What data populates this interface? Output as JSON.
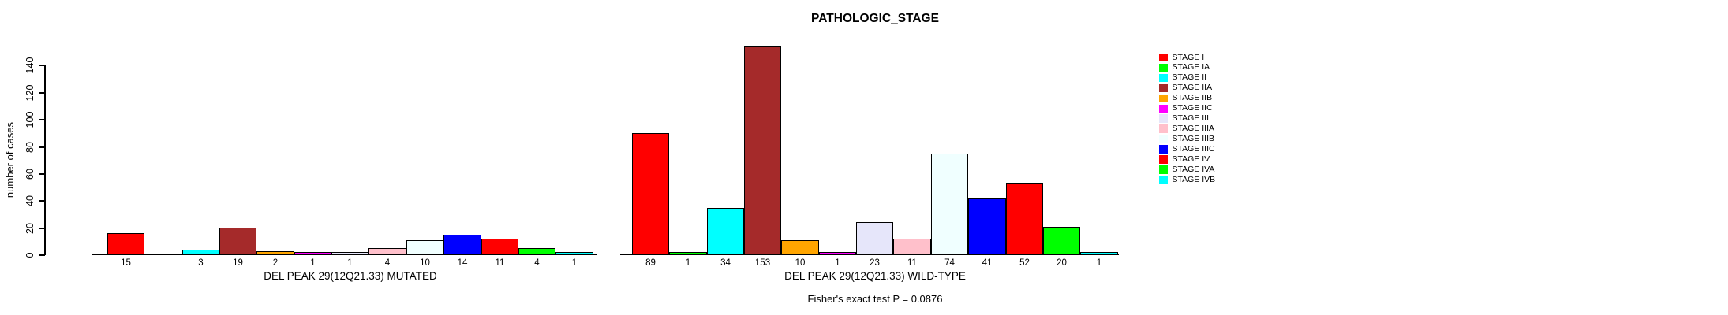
{
  "title": "PATHOLOGIC_STAGE",
  "footer": "Fisher's exact test P = 0.0876",
  "y_axis": {
    "label": "number of cases",
    "ticks": [
      0,
      20,
      40,
      60,
      80,
      100,
      120,
      140
    ]
  },
  "chart_data": {
    "type": "bar",
    "title": "PATHOLOGIC_STAGE",
    "ylabel": "number of cases",
    "ylim": [
      0,
      140
    ],
    "yticks": [
      0,
      20,
      40,
      60,
      80,
      100,
      120,
      140
    ],
    "grid": false,
    "legend_position": "right",
    "categories": [
      "STAGE I",
      "STAGE IA",
      "STAGE II",
      "STAGE IIA",
      "STAGE IIB",
      "STAGE IIC",
      "STAGE III",
      "STAGE IIIA",
      "STAGE IIIB",
      "STAGE IIIC",
      "STAGE IV",
      "STAGE IVA",
      "STAGE IVB"
    ],
    "colors": [
      "#FF0000",
      "#00FF00",
      "#00FFFF",
      "#A52A2A",
      "#FFA500",
      "#FF00FF",
      "#E6E6FA",
      "#FFC0CB",
      "#F0FFFF",
      "#0000FF",
      "#FF0000",
      "#00FF00",
      "#00FFFF"
    ],
    "series": [
      {
        "name": "DEL PEAK 29(12Q21.33) MUTATED",
        "values": [
          15,
          0,
          3,
          19,
          2,
          1,
          1,
          4,
          10,
          14,
          11,
          4,
          1
        ]
      },
      {
        "name": "DEL PEAK 29(12Q21.33) WILD-TYPE",
        "values": [
          89,
          1,
          34,
          153,
          10,
          1,
          23,
          11,
          74,
          41,
          52,
          20,
          1
        ]
      }
    ],
    "bar_value_labels_shown": "values greater than zero are printed under each bar",
    "annotation": "Fisher's exact test P = 0.0876"
  }
}
